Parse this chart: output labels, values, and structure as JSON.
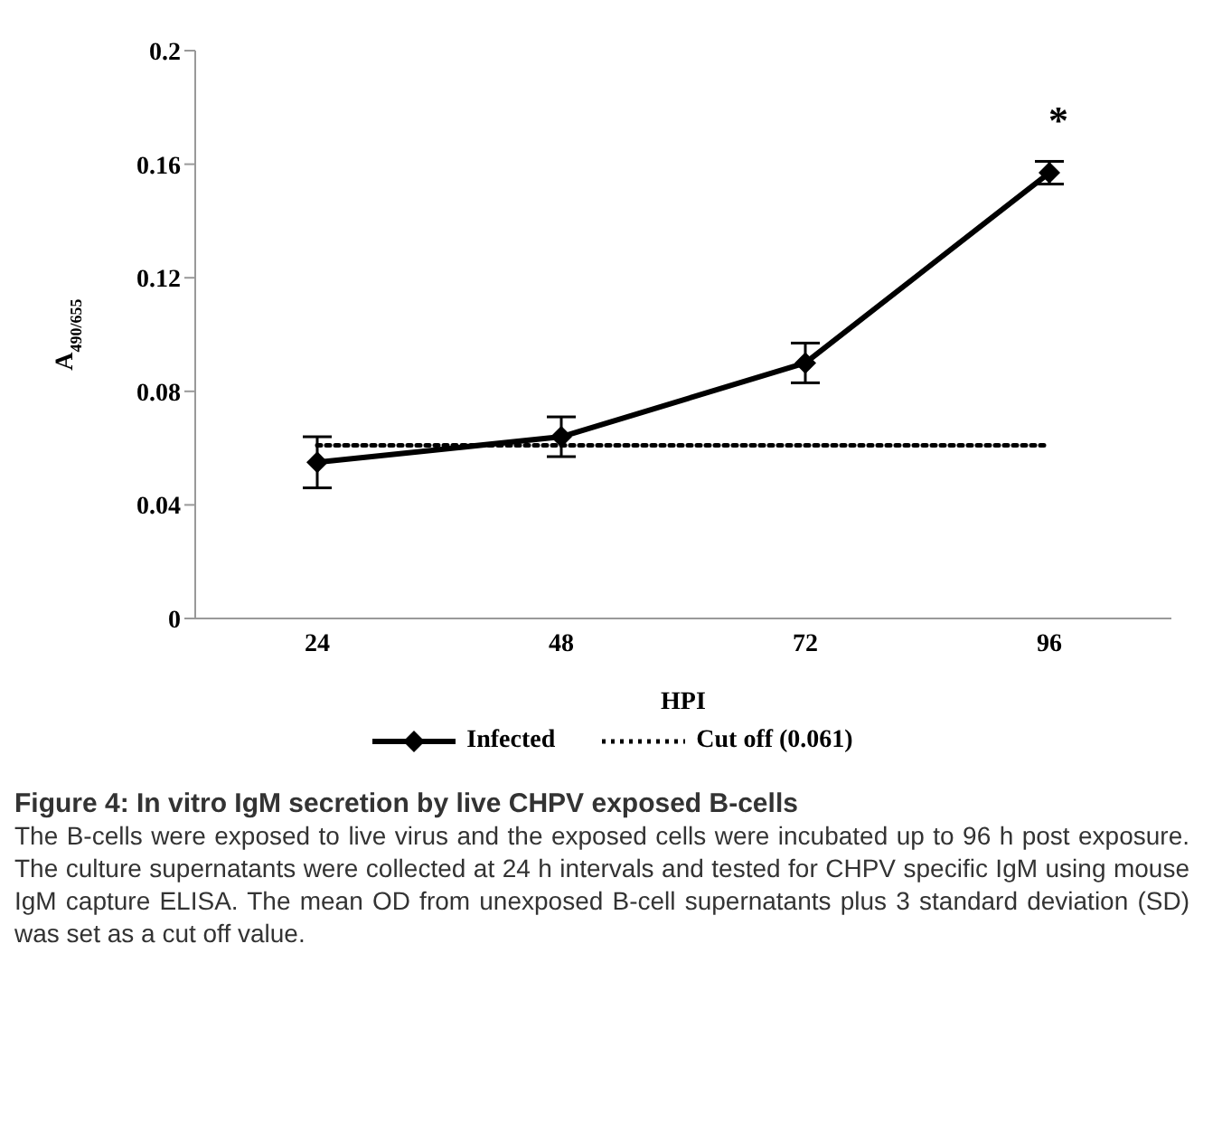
{
  "chart_data": {
    "type": "line",
    "title": "Figure 4: In vitro IgM secretion by live CHPV exposed B-cells",
    "xlabel": "HPI",
    "ylabel": "A$_{490/655}$",
    "categories": [
      "24",
      "48",
      "72",
      "96"
    ],
    "series": [
      {
        "name": "Infected",
        "color": "#000000",
        "values": [
          0.055,
          0.064,
          0.09,
          0.157
        ],
        "errors": [
          0.009,
          0.007,
          0.007,
          0.004
        ],
        "marker": "diamond",
        "line_style": "solid"
      },
      {
        "name": "Cut off (0.061)",
        "color": "#000000",
        "values": [
          0.061,
          0.061,
          0.061,
          0.061
        ],
        "marker": "none",
        "line_style": "dotted"
      }
    ],
    "ylim": [
      0,
      0.2
    ],
    "yticks": [
      0,
      0.04,
      0.08,
      0.12,
      0.16,
      0.2
    ],
    "grid": false,
    "legend": "bottom",
    "annotations": [
      "*",
      "The B-cells were exposed to live virus and the exposed cells were incubated up to 96 h post exposure. The culture supernatants were collected at 24 h intervals and tested for CHPV specific IgM using mouse IgM capture ELISA. The mean OD from unexposed B-cell supernatants plus 3 standard deviation (SD) was set as a cut off value."
    ]
  }
}
